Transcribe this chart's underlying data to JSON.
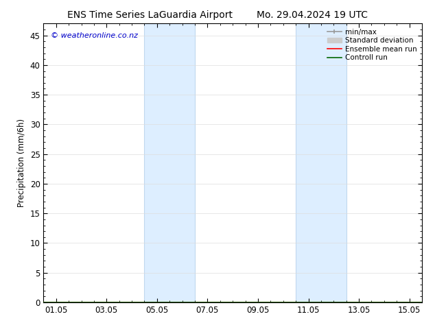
{
  "title_left": "ENS Time Series LaGuardia Airport",
  "title_right": "Mo. 29.04.2024 19 UTC",
  "ylabel": "Precipitation (mm/6h)",
  "watermark": "© weatheronline.co.nz",
  "ylim": [
    0,
    47
  ],
  "yticks": [
    0,
    5,
    10,
    15,
    20,
    25,
    30,
    35,
    40,
    45
  ],
  "xtick_labels": [
    "01.05",
    "03.05",
    "05.05",
    "07.05",
    "09.05",
    "11.05",
    "13.05",
    "15.05"
  ],
  "xtick_positions": [
    0,
    2,
    4,
    6,
    8,
    10,
    12,
    14
  ],
  "xlim": [
    -0.5,
    14.5
  ],
  "shaded_regions": [
    {
      "x_start": 3.5,
      "x_end": 5.5
    },
    {
      "x_start": 9.5,
      "x_end": 11.5
    }
  ],
  "shaded_color": "#ddeeff",
  "shaded_edge_color": "#c0d8ee",
  "legend_entries": [
    {
      "label": "min/max",
      "color": "#999999",
      "lw": 1.2
    },
    {
      "label": "Standard deviation",
      "color": "#cccccc",
      "lw": 5
    },
    {
      "label": "Ensemble mean run",
      "color": "#ff0000",
      "lw": 1.2
    },
    {
      "label": "Controll run",
      "color": "#006600",
      "lw": 1.2
    }
  ],
  "bg_color": "#ffffff",
  "title_fontsize": 10,
  "axis_fontsize": 8.5,
  "watermark_color": "#0000cc",
  "watermark_fontsize": 8
}
